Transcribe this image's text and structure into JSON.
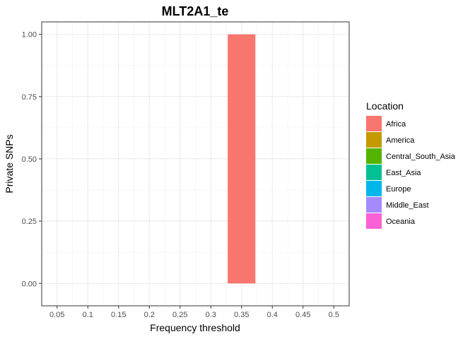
{
  "chart_data": {
    "type": "bar",
    "title": "MLT2A1_te",
    "xlabel": "Frequency threshold",
    "ylabel": "Private SNPs",
    "categories": [
      "0.05",
      "0.1",
      "0.15",
      "0.2",
      "0.25",
      "0.3",
      "0.35",
      "0.4",
      "0.45",
      "0.5"
    ],
    "x_values": [
      0.05,
      0.1,
      0.15,
      0.2,
      0.25,
      0.3,
      0.35,
      0.4,
      0.45,
      0.5
    ],
    "y_ticks": [
      "0.00",
      "0.25",
      "0.50",
      "0.75",
      "1.00"
    ],
    "ylim": [
      0,
      1
    ],
    "series": [
      {
        "name": "Africa",
        "color": "#F8766D",
        "values": [
          0,
          0,
          0,
          0,
          0,
          0,
          1,
          0,
          0,
          0
        ]
      }
    ],
    "legend": {
      "title": "Location",
      "placement": "right",
      "entries": [
        {
          "label": "Africa",
          "color": "#F8766D"
        },
        {
          "label": "America",
          "color": "#C49A00"
        },
        {
          "label": "Central_South_Asia",
          "color": "#53B400"
        },
        {
          "label": "East_Asia",
          "color": "#00C094"
        },
        {
          "label": "Europe",
          "color": "#00B6EB"
        },
        {
          "label": "Middle_East",
          "color": "#A58AFF"
        },
        {
          "label": "Oceania",
          "color": "#FB61D7"
        }
      ]
    },
    "grid": true
  }
}
